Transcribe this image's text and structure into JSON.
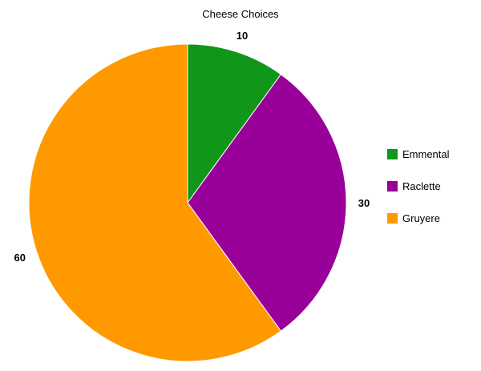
{
  "chart_data": {
    "type": "pie",
    "title": "Cheese Choices",
    "categories": [
      "Emmental",
      "Raclette",
      "Gruyere"
    ],
    "values": [
      10,
      30,
      60
    ],
    "colors": [
      "#109618",
      "#990099",
      "#ff9900"
    ],
    "start_angle_deg": 0,
    "direction": "clockwise",
    "legend_position": "right",
    "data_labels": [
      "10",
      "30",
      "60"
    ]
  }
}
